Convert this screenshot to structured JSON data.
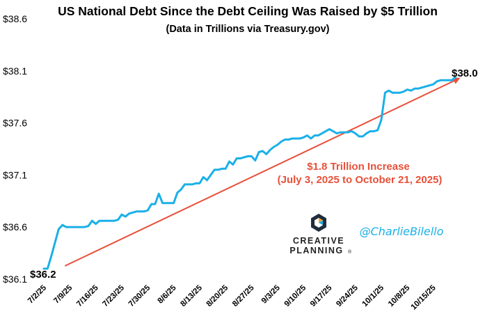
{
  "chart_data": {
    "type": "line",
    "title": "US National Debt Since the Debt Ceiling Was Raised by $5 Trillion",
    "subtitle": "(Data in Trillions via Treasury.gov)",
    "xlabel": "",
    "ylabel": "",
    "ylim": [
      36.1,
      38.6
    ],
    "yticks": [
      "$38.6",
      "$38.1",
      "$37.6",
      "$37.1",
      "$36.6",
      "$36.1"
    ],
    "ytick_values": [
      38.6,
      38.1,
      37.6,
      37.1,
      36.6,
      36.1
    ],
    "xticks": [
      "7/2/25",
      "7/9/25",
      "7/16/25",
      "7/23/25",
      "7/30/25",
      "8/6/25",
      "8/13/25",
      "8/20/25",
      "8/27/25",
      "9/3/25",
      "9/10/25",
      "9/17/25",
      "9/24/25",
      "10/1/25",
      "10/8/25",
      "10/15/25"
    ],
    "xtick_days": [
      0,
      7,
      14,
      21,
      28,
      35,
      42,
      49,
      56,
      63,
      70,
      77,
      84,
      91,
      98,
      105
    ],
    "grid": false,
    "series": [
      {
        "name": "US National Debt",
        "color": "#1ab0e8",
        "x": [
          0,
          1,
          2,
          3,
          4,
          5,
          6,
          7,
          8,
          9,
          10,
          11,
          12,
          13,
          14,
          15,
          16,
          17,
          18,
          19,
          20,
          21,
          22,
          23,
          24,
          25,
          26,
          27,
          28,
          29,
          30,
          31,
          32,
          33,
          34,
          35,
          36,
          37,
          38,
          39,
          40,
          41,
          42,
          43,
          44,
          45,
          46,
          47,
          48,
          49,
          50,
          51,
          52,
          53,
          54,
          55,
          56,
          57,
          58,
          59,
          60,
          61,
          62,
          63,
          64,
          65,
          66,
          67,
          68,
          69,
          70,
          71,
          72,
          73,
          74,
          75,
          76,
          77,
          78,
          79,
          80,
          81,
          82,
          83,
          84,
          85,
          86,
          87,
          88,
          89,
          90,
          91,
          92,
          93,
          94,
          95,
          96,
          97,
          98,
          99,
          100,
          101,
          102,
          103,
          104,
          105,
          106,
          107,
          108,
          109,
          110,
          111
        ],
        "values": [
          36.2,
          36.2,
          36.32,
          36.45,
          36.58,
          36.62,
          36.6,
          36.6,
          36.6,
          36.6,
          36.6,
          36.6,
          36.61,
          36.66,
          36.63,
          36.66,
          36.66,
          36.66,
          36.66,
          36.66,
          36.67,
          36.72,
          36.7,
          36.73,
          36.74,
          36.75,
          36.75,
          36.75,
          36.76,
          36.82,
          36.82,
          36.92,
          36.83,
          36.83,
          36.83,
          36.83,
          36.93,
          36.96,
          37.01,
          37.01,
          37.01,
          37.02,
          37.02,
          37.08,
          37.05,
          37.1,
          37.15,
          37.15,
          37.16,
          37.16,
          37.23,
          37.2,
          37.26,
          37.26,
          37.27,
          37.28,
          37.28,
          37.24,
          37.32,
          37.33,
          37.3,
          37.34,
          37.37,
          37.39,
          37.42,
          37.44,
          37.44,
          37.45,
          37.45,
          37.45,
          37.46,
          37.48,
          37.45,
          37.48,
          37.48,
          37.5,
          37.52,
          37.54,
          37.52,
          37.5,
          37.51,
          37.51,
          37.51,
          37.52,
          37.5,
          37.47,
          37.47,
          37.5,
          37.52,
          37.52,
          37.53,
          37.63,
          37.89,
          37.91,
          37.89,
          37.89,
          37.89,
          37.9,
          37.92,
          37.91,
          37.93,
          37.93,
          37.94,
          37.95,
          37.96,
          37.97,
          38.0,
          38.01,
          38.01,
          38.01,
          38.01,
          38.04
        ]
      }
    ],
    "trend_arrow": {
      "from": {
        "x": 1,
        "y": 36.2
      },
      "to": {
        "x": 111,
        "y": 38.0
      },
      "color": "#e8503a"
    },
    "annotations": {
      "start_label": "$36.2",
      "end_label": "$38.0",
      "increase_line1": "$1.8 Trillion Increase",
      "increase_line2": "(July 3, 2025 to October 21, 2025)"
    }
  },
  "branding": {
    "logo_line1": "CREATIVE",
    "logo_line2": "PLANNING",
    "logo_mark": "®",
    "handle": "@CharlieBilello",
    "accent_color": "#1ab0e8",
    "arrow_color": "#e8503a"
  }
}
